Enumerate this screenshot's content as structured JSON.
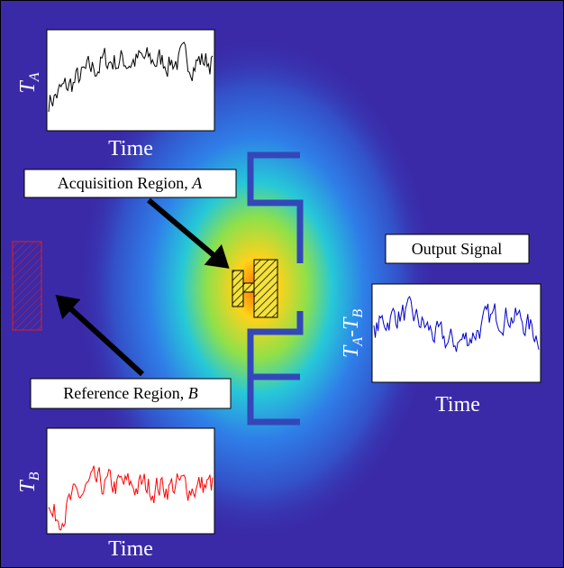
{
  "plots": [
    {
      "axis_symbol": "T",
      "axis_subscript": "A",
      "x_label": "Time",
      "color": "#000000"
    },
    {
      "axis_symbol": "T",
      "axis_subscript": "A",
      "axis_joiner": "-",
      "axis_symbol2": "T",
      "axis_subscript2": "B",
      "x_label": "Time",
      "color": "#0000cc"
    },
    {
      "axis_symbol": "T",
      "axis_subscript": "B",
      "x_label": "Time",
      "color": "#ff0000"
    }
  ],
  "callouts": {
    "acquisition": {
      "text": "Acquisition Region,",
      "variable": "A"
    },
    "reference": {
      "text": "Reference Region,",
      "variable": "B"
    },
    "output": {
      "text": "Output Signal"
    }
  }
}
